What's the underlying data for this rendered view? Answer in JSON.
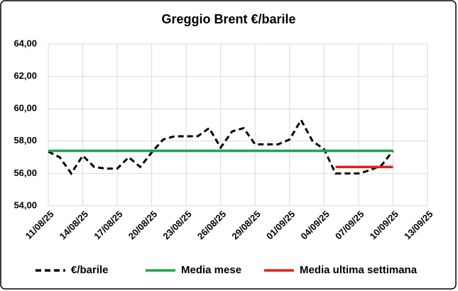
{
  "chart_data": {
    "type": "line",
    "title": "Greggio Brent €/barile",
    "series": [
      {
        "name": "€/barile",
        "color": "#000000",
        "dash": true,
        "x": [
          "11/08/25",
          "12/08/25",
          "13/08/25",
          "14/08/25",
          "15/08/25",
          "16/08/25",
          "17/08/25",
          "18/08/25",
          "19/08/25",
          "20/08/25",
          "21/08/25",
          "22/08/25",
          "23/08/25",
          "24/08/25",
          "25/08/25",
          "26/08/25",
          "27/08/25",
          "28/08/25",
          "29/08/25",
          "30/08/25",
          "31/08/25",
          "01/09/25",
          "02/09/25",
          "03/09/25",
          "04/09/25",
          "05/09/25",
          "06/09/25",
          "07/09/25",
          "08/09/25",
          "09/09/25",
          "10/09/25"
        ],
        "values": [
          57.35,
          57.0,
          56.0,
          57.1,
          56.4,
          56.3,
          56.3,
          57.0,
          56.4,
          57.3,
          58.1,
          58.3,
          58.3,
          58.3,
          58.8,
          57.6,
          58.6,
          58.8,
          57.8,
          57.8,
          57.8,
          58.1,
          59.3,
          58.0,
          57.5,
          56.0,
          56.0,
          56.0,
          56.2,
          56.5,
          57.4
        ]
      },
      {
        "name": "Media mese",
        "color": "#1fa54a",
        "dash": false,
        "x": [
          "11/08/25",
          "10/09/25"
        ],
        "values": [
          57.4,
          57.4
        ]
      },
      {
        "name": "Media ultima settimana",
        "color": "#e0201b",
        "dash": false,
        "x": [
          "05/09/25",
          "10/09/25"
        ],
        "values": [
          56.4,
          56.4
        ]
      }
    ],
    "xlim": [
      "11/08/25",
      "13/09/25"
    ],
    "xticks": [
      "11/08/25",
      "14/08/25",
      "17/08/25",
      "20/08/25",
      "23/08/25",
      "26/08/25",
      "29/08/25",
      "01/09/25",
      "04/09/25",
      "07/09/25",
      "10/09/25",
      "13/09/25"
    ],
    "ylim": [
      54,
      64
    ],
    "yticks": [
      {
        "value": 54,
        "label": "54,00"
      },
      {
        "value": 56,
        "label": "56,00"
      },
      {
        "value": 58,
        "label": "58,00"
      },
      {
        "value": 60,
        "label": "60,00"
      },
      {
        "value": 62,
        "label": "62,00"
      },
      {
        "value": 64,
        "label": "64,00"
      }
    ],
    "grid": true,
    "legend": "bottom"
  }
}
